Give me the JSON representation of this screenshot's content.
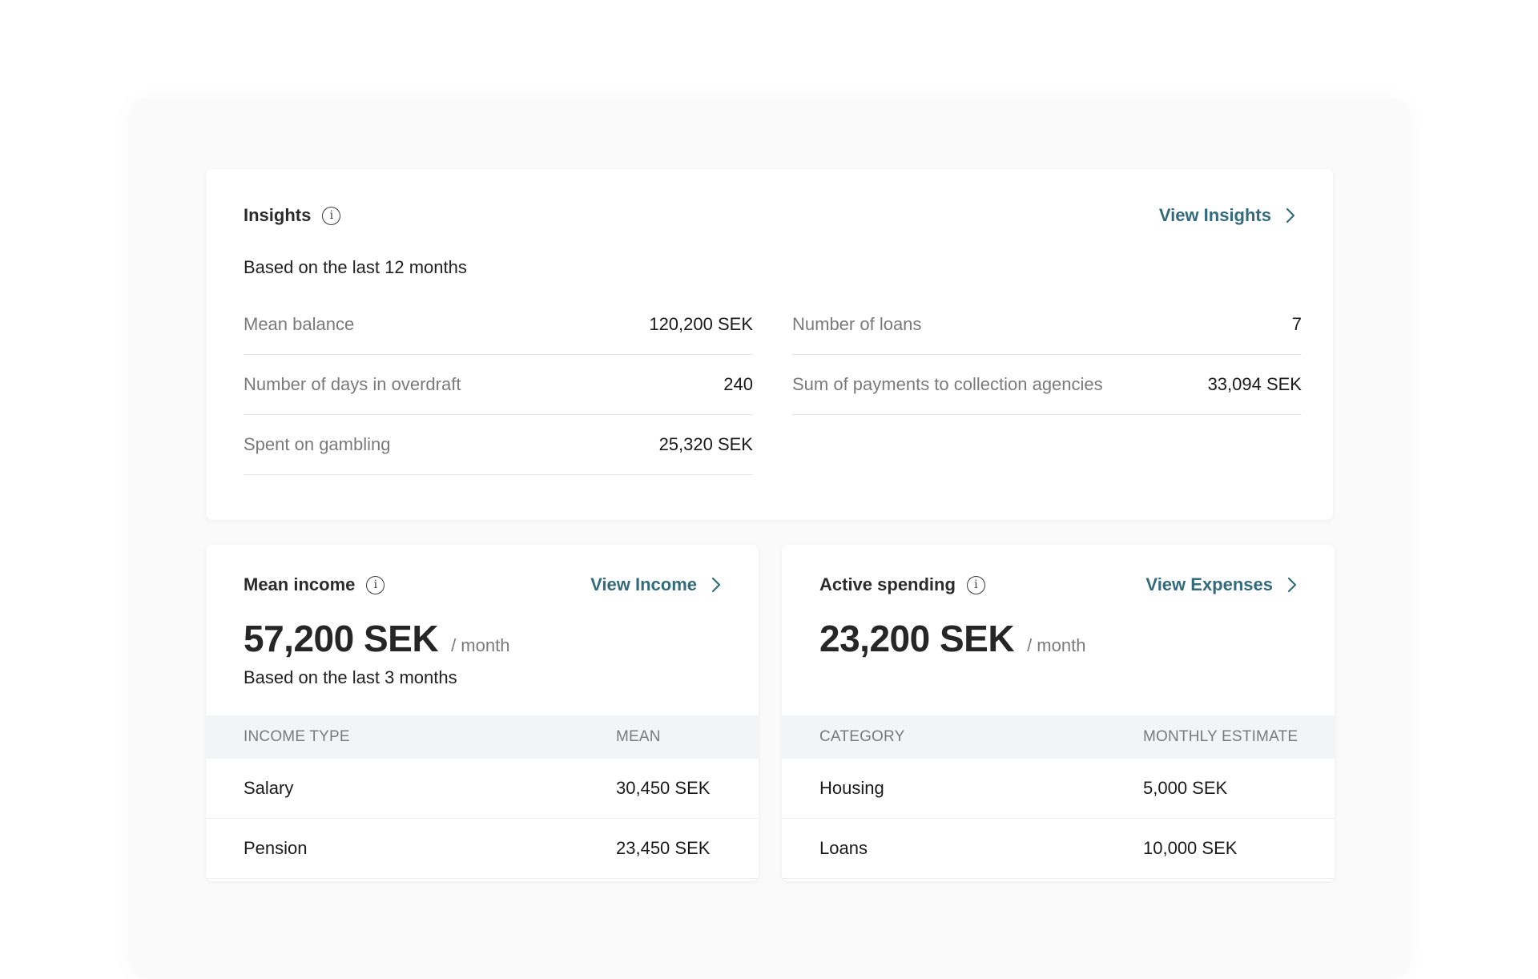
{
  "insights": {
    "title": "Insights",
    "link_label": "View Insights",
    "subtitle": "Based on the last 12 months",
    "left_rows": [
      {
        "label": "Mean balance",
        "value": "120,200 SEK"
      },
      {
        "label": "Number of days in overdraft",
        "value": "240"
      },
      {
        "label": "Spent on gambling",
        "value": "25,320 SEK"
      }
    ],
    "right_rows": [
      {
        "label": "Number of loans",
        "value": "7"
      },
      {
        "label": "Sum of payments to collection agencies",
        "value": "33,094 SEK"
      }
    ]
  },
  "income": {
    "title": "Mean income",
    "link_label": "View Income",
    "amount": "57,200 SEK",
    "period": "/ month",
    "subtitle": "Based on the last 3 months",
    "columns": [
      "INCOME TYPE",
      "MEAN"
    ],
    "rows": [
      {
        "type": "Salary",
        "mean": "30,450 SEK"
      },
      {
        "type": "Pension",
        "mean": "23,450 SEK"
      }
    ]
  },
  "spending": {
    "title": "Active spending",
    "link_label": "View Expenses",
    "amount": "23,200 SEK",
    "period": "/ month",
    "columns": [
      "CATEGORY",
      "MONTHLY ESTIMATE"
    ],
    "rows": [
      {
        "category": "Housing",
        "estimate": "5,000 SEK"
      },
      {
        "category": "Loans",
        "estimate": "10,000 SEK"
      }
    ]
  },
  "colors": {
    "link": "#336b7a",
    "label_gray": "#7a7a7a",
    "table_header_bg": "#f3f4f5"
  }
}
